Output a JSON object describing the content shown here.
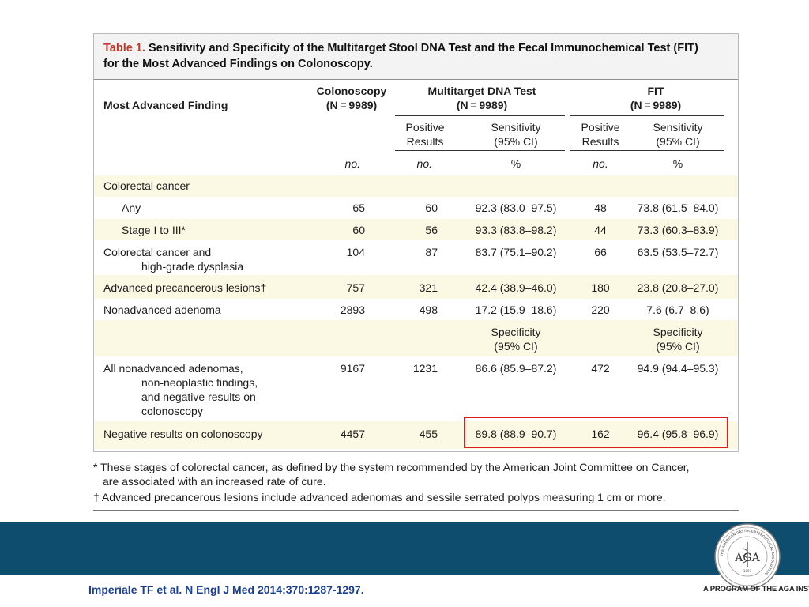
{
  "title": {
    "label": "Table 1.",
    "line1": "Sensitivity and Specificity of the Multitarget Stool DNA Test and the Fecal Immunochemical Test (FIT)",
    "line2": "for the Most Advanced Findings on Colonoscopy."
  },
  "headers": {
    "finding": "Most Advanced Finding",
    "colonoscopy": [
      "Colonoscopy",
      "(N = 9989)"
    ],
    "dna": [
      "Multitarget DNA Test",
      "(N = 9989)"
    ],
    "fit": [
      "FIT",
      "(N = 9989)"
    ],
    "positive": [
      "Positive",
      "Results"
    ],
    "sensitivity": [
      "Sensitivity",
      "(95% CI)"
    ],
    "units": {
      "colonoscopy": "no.",
      "dna_positive": "no.",
      "dna_pct": "%",
      "fit_positive": "no.",
      "fit_pct": "%"
    }
  },
  "rows": [
    {
      "label": "Colorectal cancer",
      "values": [
        "",
        "",
        "",
        "",
        ""
      ]
    },
    {
      "label": "Any",
      "values": [
        "65",
        "60",
        "92.3 (83.0–97.5)",
        "48",
        "73.8 (61.5–84.0)"
      ]
    },
    {
      "label": "Stage I to III*",
      "values": [
        "60",
        "56",
        "93.3 (83.8–98.2)",
        "44",
        "73.3 (60.3–83.9)"
      ]
    },
    {
      "label": [
        "Colorectal cancer and",
        "high-grade dysplasia"
      ],
      "values": [
        "104",
        "87",
        "83.7 (75.1–90.2)",
        "66",
        "63.5 (53.5–72.7)"
      ]
    },
    {
      "label": "Advanced precancerous lesions†",
      "values": [
        "757",
        "321",
        "42.4 (38.9–46.0)",
        "180",
        "23.8 (20.8–27.0)"
      ]
    },
    {
      "label": "Nonadvanced adenoma",
      "values": [
        "2893",
        "498",
        "17.2 (15.9–18.6)",
        "220",
        "7.6 (6.7–8.6)"
      ]
    },
    {
      "label": "",
      "values": [
        "",
        "",
        "",
        "",
        ""
      ]
    },
    {
      "label": [
        "All nonadvanced adenomas,",
        "non-neoplastic findings,",
        "and negative results on",
        "colonoscopy"
      ],
      "values": [
        "9167",
        "1231",
        "86.6 (85.9–87.2)",
        "472",
        "94.9 (94.4–95.3)"
      ]
    },
    {
      "label": "Negative results on colonoscopy",
      "values": [
        "4457",
        "455",
        "89.8 (88.9–90.7)",
        "162",
        "96.4 (95.8–96.9)"
      ]
    }
  ],
  "specificity_header": [
    "Specificity",
    "(95% CI)"
  ],
  "footnotes": {
    "star": [
      "* These stages of colorectal cancer, as defined by the system recommended by the American Joint Committee on Cancer,",
      "are associated with an increased rate of cure."
    ],
    "dagger": "† Advanced precancerous lesions include advanced adenomas and sessile serrated polyps measuring 1 cm or more."
  },
  "citation": "Imperiale TF et al. N Engl J Med 2014;370:1287-1297.",
  "program": "A PROGRAM OF THE AGA INSTITUTE",
  "logo": {
    "monogram": "AGA",
    "ring_text": "THE AMERICAN GASTROENTEROLOGICAL ASSOCIATION",
    "year": "1897"
  },
  "colors": {
    "band": "#0e4d6d",
    "highlight": "#e01b1b",
    "stripe": "#fbf8e4",
    "title_red": "#c0392b",
    "citation": "#1c3f8c"
  }
}
